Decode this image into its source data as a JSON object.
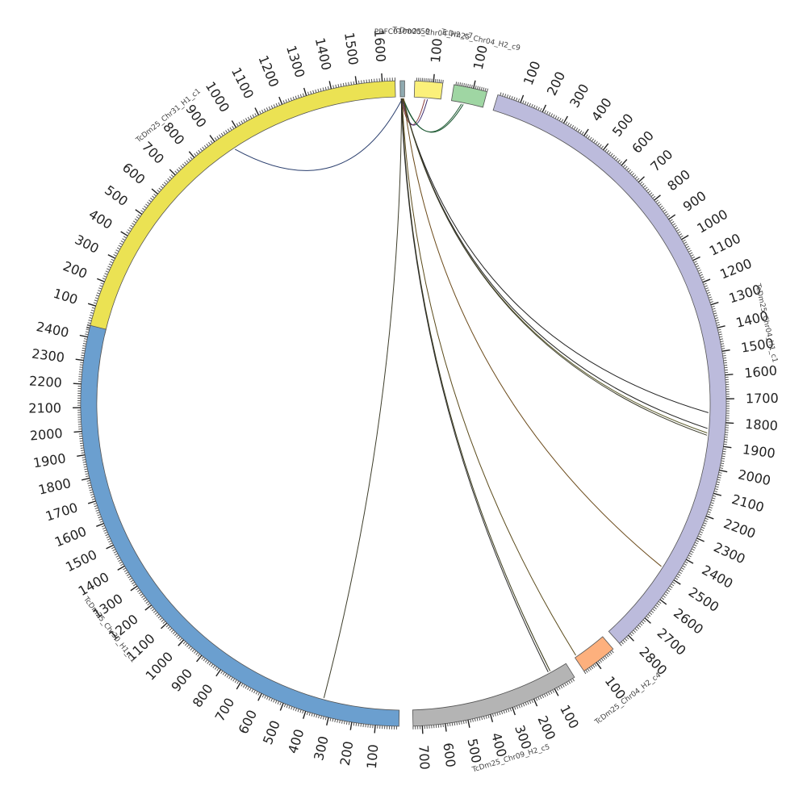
{
  "chromosomes": [
    {
      "name": "TcDm25_Chr31_H1_c1",
      "length": 1650,
      "color": "#ebe253"
    },
    {
      "name": "PRFC01000059",
      "length": 10,
      "color": "#90aab0"
    },
    {
      "name": "TcDm25_Chr04_H2_c7",
      "length": 150,
      "color": "#fbf07a"
    },
    {
      "name": "TcDm25_Chr04_H2_c9",
      "length": 170,
      "color": "#9fd6a3"
    },
    {
      "name": "TcDm25_Chr04_H1_c1",
      "length": 2850,
      "color": "#bcbbdc"
    },
    {
      "name": "TcDm25_Chr04_H2_c4",
      "length": 170,
      "color": "#fdb07d"
    },
    {
      "name": "TcDm25_Chr09_H2_c5",
      "length": 740,
      "color": "#b4b4b4"
    },
    {
      "name": "TcDm25_Chr30_H1_c1",
      "length": 2450,
      "color": "#6b9fcf"
    }
  ],
  "links": [
    {
      "from": "PRFC01000059",
      "from_pos": 5,
      "to": "TcDm25_Chr31_H1_c1",
      "to_pos": 950,
      "color": "#2b3f6e"
    },
    {
      "from": "PRFC01000059",
      "from_pos": 3,
      "to": "TcDm25_Chr30_H1_c1",
      "to_pos": 340,
      "color": "#3d3d2a"
    },
    {
      "from": "PRFC01000059",
      "from_pos": 2,
      "to": "TcDm25_Chr04_H2_c7",
      "to_pos": 60,
      "color": "#8a3b3b"
    },
    {
      "from": "PRFC01000059",
      "from_pos": 4,
      "to": "TcDm25_Chr04_H2_c7",
      "to_pos": 75,
      "color": "#3b2b6e"
    },
    {
      "from": "PRFC01000059",
      "from_pos": 6,
      "to": "TcDm25_Chr04_H2_c9",
      "to_pos": 55,
      "color": "#1f5a34"
    },
    {
      "from": "PRFC01000059",
      "from_pos": 7,
      "to": "TcDm25_Chr04_H2_c9",
      "to_pos": 65,
      "color": "#1f5a34"
    },
    {
      "from": "PRFC01000059",
      "from_pos": 5,
      "to": "TcDm25_Chr04_H1_c1",
      "to_pos": 1760,
      "color": "#222222"
    },
    {
      "from": "PRFC01000059",
      "from_pos": 6,
      "to": "TcDm25_Chr04_H1_c1",
      "to_pos": 1830,
      "color": "#222222"
    },
    {
      "from": "PRFC01000059",
      "from_pos": 6,
      "to": "TcDm25_Chr04_H1_c1",
      "to_pos": 1850,
      "color": "#5a5a2a"
    },
    {
      "from": "PRFC01000059",
      "from_pos": 7,
      "to": "TcDm25_Chr04_H1_c1",
      "to_pos": 1860,
      "color": "#3a3a2a"
    },
    {
      "from": "PRFC01000059",
      "from_pos": 8,
      "to": "TcDm25_Chr04_H1_c1",
      "to_pos": 2480,
      "color": "#6b4a1a"
    },
    {
      "from": "PRFC01000059",
      "from_pos": 4,
      "to": "TcDm25_Chr04_H2_c4",
      "to_pos": 160,
      "color": "#5a4a1a"
    },
    {
      "from": "PRFC01000059",
      "from_pos": 3,
      "to": "TcDm25_Chr09_H2_c5",
      "to_pos": 80,
      "color": "#3a3a1a"
    },
    {
      "from": "PRFC01000059",
      "from_pos": 2,
      "to": "TcDm25_Chr09_H2_c5",
      "to_pos": 90,
      "color": "#2a2a2a"
    }
  ]
}
